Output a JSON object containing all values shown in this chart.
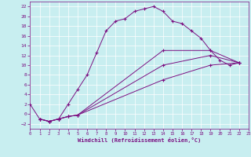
{
  "xlabel": "Windchill (Refroidissement éolien,°C)",
  "bg_color": "#c8eef0",
  "line_color": "#7b1082",
  "xlim": [
    0,
    23
  ],
  "ylim": [
    -3,
    23
  ],
  "xticks": [
    0,
    1,
    2,
    3,
    4,
    5,
    6,
    7,
    8,
    9,
    10,
    11,
    12,
    13,
    14,
    15,
    16,
    17,
    18,
    19,
    20,
    21,
    22,
    23
  ],
  "yticks": [
    -2,
    0,
    2,
    4,
    6,
    8,
    10,
    12,
    14,
    16,
    18,
    20,
    22
  ],
  "series1_x": [
    0,
    1,
    2,
    3,
    4,
    5,
    6,
    7,
    8,
    9,
    10,
    11,
    12,
    13,
    14,
    15,
    16,
    17,
    18,
    19,
    20,
    21,
    22
  ],
  "series1_y": [
    2,
    -1,
    -1.5,
    -1,
    2,
    5,
    8,
    12.5,
    17,
    19,
    19.5,
    21,
    21.5,
    22,
    21,
    19,
    18.5,
    17,
    15.5,
    13,
    11,
    10,
    10.5
  ],
  "series2_x": [
    1,
    2,
    3,
    4,
    5,
    14,
    19,
    22
  ],
  "series2_y": [
    -1,
    -1.5,
    -1,
    -0.5,
    -0.2,
    13,
    13,
    10.5
  ],
  "series3_x": [
    1,
    2,
    3,
    4,
    5,
    14,
    19,
    22
  ],
  "series3_y": [
    -1,
    -1.5,
    -1,
    -0.5,
    -0.2,
    10,
    12,
    10.5
  ],
  "series4_x": [
    1,
    2,
    3,
    4,
    5,
    14,
    19,
    22
  ],
  "series4_y": [
    -1,
    -1.5,
    -1,
    -0.5,
    -0.2,
    7,
    10,
    10.5
  ]
}
